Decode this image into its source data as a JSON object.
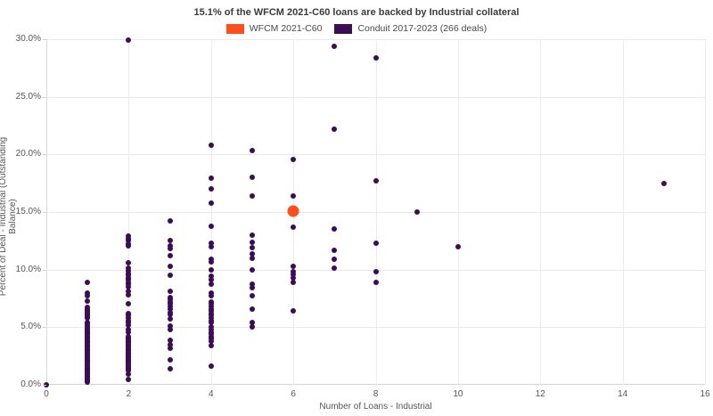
{
  "title": "15.1% of the WFCM 2021-C60 loans are backed by Industrial collateral",
  "chart_data": {
    "type": "scatter",
    "title": "15.1% of the WFCM 2021-C60 loans are backed by Industrial collateral",
    "xlabel": "Number of Loans - Industrial",
    "ylabel": "Percent of Deal - Industrial (Outstanding Balance)",
    "xlim": [
      0,
      16
    ],
    "ylim": [
      0,
      30
    ],
    "xticks": [
      0,
      2,
      4,
      6,
      8,
      10,
      12,
      14,
      16
    ],
    "yticks": [
      0,
      5,
      10,
      15,
      20,
      25,
      30
    ],
    "ytick_labels": [
      "0.0%",
      "5.0%",
      "10.0%",
      "15.0%",
      "20.0%",
      "25.0%",
      "30.0%"
    ],
    "grid": true,
    "legend_position": "top-center",
    "series": [
      {
        "name": "Conduit 2017-2023 (266 deals)",
        "color": "#3c0d56",
        "marker_size": 6,
        "points": [
          [
            0,
            0.0
          ],
          [
            1,
            8.9
          ],
          [
            1,
            8.0
          ],
          [
            1,
            7.7
          ],
          [
            1,
            7.3
          ],
          [
            1,
            6.7
          ],
          [
            1,
            6.6
          ],
          [
            1,
            6.5
          ],
          [
            1,
            6.4
          ],
          [
            1,
            6.3
          ],
          [
            1,
            6.2
          ],
          [
            1,
            6.1
          ],
          [
            1,
            6.0
          ],
          [
            1,
            5.9
          ],
          [
            1,
            5.8
          ],
          [
            1,
            5.4
          ],
          [
            1,
            5.3
          ],
          [
            1,
            5.2
          ],
          [
            1,
            5.0
          ],
          [
            1,
            4.9
          ],
          [
            1,
            4.8
          ],
          [
            1,
            4.7
          ],
          [
            1,
            4.6
          ],
          [
            1,
            4.5
          ],
          [
            1,
            4.4
          ],
          [
            1,
            4.3
          ],
          [
            1,
            4.2
          ],
          [
            1,
            4.1
          ],
          [
            1,
            4.0
          ],
          [
            1,
            3.9
          ],
          [
            1,
            3.8
          ],
          [
            1,
            3.7
          ],
          [
            1,
            3.6
          ],
          [
            1,
            3.5
          ],
          [
            1,
            3.4
          ],
          [
            1,
            3.3
          ],
          [
            1,
            3.2
          ],
          [
            1,
            3.1
          ],
          [
            1,
            3.0
          ],
          [
            1,
            2.9
          ],
          [
            1,
            2.8
          ],
          [
            1,
            2.7
          ],
          [
            1,
            2.6
          ],
          [
            1,
            2.5
          ],
          [
            1,
            2.4
          ],
          [
            1,
            2.3
          ],
          [
            1,
            2.2
          ],
          [
            1,
            2.1
          ],
          [
            1,
            2.0
          ],
          [
            1,
            1.9
          ],
          [
            1,
            1.8
          ],
          [
            1,
            1.7
          ],
          [
            1,
            1.6
          ],
          [
            1,
            1.5
          ],
          [
            1,
            1.4
          ],
          [
            1,
            1.3
          ],
          [
            1,
            1.2
          ],
          [
            1,
            1.1
          ],
          [
            1,
            1.0
          ],
          [
            1,
            0.9
          ],
          [
            1,
            0.8
          ],
          [
            1,
            0.7
          ],
          [
            1,
            0.6
          ],
          [
            1,
            0.5
          ],
          [
            1,
            0.4
          ],
          [
            1,
            0.3
          ],
          [
            1,
            0.2
          ],
          [
            2,
            29.9
          ],
          [
            2,
            12.9
          ],
          [
            2,
            12.7
          ],
          [
            2,
            12.5
          ],
          [
            2,
            12.2
          ],
          [
            2,
            12.1
          ],
          [
            2,
            10.6
          ],
          [
            2,
            10.1
          ],
          [
            2,
            9.9
          ],
          [
            2,
            9.7
          ],
          [
            2,
            9.5
          ],
          [
            2,
            9.3
          ],
          [
            2,
            9.1
          ],
          [
            2,
            8.9
          ],
          [
            2,
            8.7
          ],
          [
            2,
            8.5
          ],
          [
            2,
            8.1
          ],
          [
            2,
            7.8
          ],
          [
            2,
            7.0
          ],
          [
            2,
            6.2
          ],
          [
            2,
            6.0
          ],
          [
            2,
            5.8
          ],
          [
            2,
            5.6
          ],
          [
            2,
            5.4
          ],
          [
            2,
            5.2
          ],
          [
            2,
            4.8
          ],
          [
            2,
            4.6
          ],
          [
            2,
            4.2
          ],
          [
            2,
            4.1
          ],
          [
            2,
            4.0
          ],
          [
            2,
            3.9
          ],
          [
            2,
            3.8
          ],
          [
            2,
            3.7
          ],
          [
            2,
            3.6
          ],
          [
            2,
            3.5
          ],
          [
            2,
            3.4
          ],
          [
            2,
            3.3
          ],
          [
            2,
            3.2
          ],
          [
            2,
            3.1
          ],
          [
            2,
            3.0
          ],
          [
            2,
            2.9
          ],
          [
            2,
            2.8
          ],
          [
            2,
            2.7
          ],
          [
            2,
            2.6
          ],
          [
            2,
            2.5
          ],
          [
            2,
            2.4
          ],
          [
            2,
            2.3
          ],
          [
            2,
            2.2
          ],
          [
            2,
            2.1
          ],
          [
            2,
            2.0
          ],
          [
            2,
            1.9
          ],
          [
            2,
            1.8
          ],
          [
            2,
            1.7
          ],
          [
            2,
            1.6
          ],
          [
            2,
            1.5
          ],
          [
            2,
            1.4
          ],
          [
            2,
            1.3
          ],
          [
            2,
            1.2
          ],
          [
            2,
            0.9
          ],
          [
            2,
            0.5
          ],
          [
            3,
            14.2
          ],
          [
            3,
            12.5
          ],
          [
            3,
            12.1
          ],
          [
            3,
            11.8
          ],
          [
            3,
            11.2
          ],
          [
            3,
            10.3
          ],
          [
            3,
            9.5
          ],
          [
            3,
            8.1
          ],
          [
            3,
            7.6
          ],
          [
            3,
            7.4
          ],
          [
            3,
            7.2
          ],
          [
            3,
            7.0
          ],
          [
            3,
            6.8
          ],
          [
            3,
            6.6
          ],
          [
            3,
            6.3
          ],
          [
            3,
            6.1
          ],
          [
            3,
            5.7
          ],
          [
            3,
            5.1
          ],
          [
            3,
            4.8
          ],
          [
            3,
            3.9
          ],
          [
            3,
            3.5
          ],
          [
            3,
            3.2
          ],
          [
            3,
            2.2
          ],
          [
            3,
            1.4
          ],
          [
            4,
            20.8
          ],
          [
            4,
            17.9
          ],
          [
            4,
            17.0
          ],
          [
            4,
            15.8
          ],
          [
            4,
            13.8
          ],
          [
            4,
            12.3
          ],
          [
            4,
            12.0
          ],
          [
            4,
            10.9
          ],
          [
            4,
            10.7
          ],
          [
            4,
            10.0
          ],
          [
            4,
            9.4
          ],
          [
            4,
            9.1
          ],
          [
            4,
            8.7
          ],
          [
            4,
            8.0
          ],
          [
            4,
            7.7
          ],
          [
            4,
            7.2
          ],
          [
            4,
            7.0
          ],
          [
            4,
            6.8
          ],
          [
            4,
            6.6
          ],
          [
            4,
            6.4
          ],
          [
            4,
            6.2
          ],
          [
            4,
            6.0
          ],
          [
            4,
            5.8
          ],
          [
            4,
            5.6
          ],
          [
            4,
            5.4
          ],
          [
            4,
            5.0
          ],
          [
            4,
            4.8
          ],
          [
            4,
            4.6
          ],
          [
            4,
            4.4
          ],
          [
            4,
            4.2
          ],
          [
            4,
            4.0
          ],
          [
            4,
            3.8
          ],
          [
            4,
            3.4
          ],
          [
            4,
            1.6
          ],
          [
            5,
            20.3
          ],
          [
            5,
            18.0
          ],
          [
            5,
            16.4
          ],
          [
            5,
            13.0
          ],
          [
            5,
            12.4
          ],
          [
            5,
            11.9
          ],
          [
            5,
            11.4
          ],
          [
            5,
            11.0
          ],
          [
            5,
            10.0
          ],
          [
            5,
            8.7
          ],
          [
            5,
            8.4
          ],
          [
            5,
            7.7
          ],
          [
            5,
            6.6
          ],
          [
            5,
            5.4
          ],
          [
            5,
            5.0
          ],
          [
            6,
            19.6
          ],
          [
            6,
            16.4
          ],
          [
            6,
            13.7
          ],
          [
            6,
            10.3
          ],
          [
            6,
            9.8
          ],
          [
            6,
            9.6
          ],
          [
            6,
            9.3
          ],
          [
            6,
            8.9
          ],
          [
            6,
            6.4
          ],
          [
            7,
            29.4
          ],
          [
            7,
            22.2
          ],
          [
            7,
            13.5
          ],
          [
            7,
            11.7
          ],
          [
            7,
            10.9
          ],
          [
            7,
            10.1
          ],
          [
            8,
            28.4
          ],
          [
            8,
            17.7
          ],
          [
            8,
            12.3
          ],
          [
            8,
            9.8
          ],
          [
            8,
            8.9
          ],
          [
            9,
            15.0
          ],
          [
            10,
            12.0
          ],
          [
            15,
            17.5
          ]
        ]
      },
      {
        "name": "WFCM 2021-C60",
        "color": "#ff4e1d",
        "marker_size": 13,
        "points": [
          [
            6,
            15.1
          ]
        ]
      }
    ]
  },
  "legend": [
    {
      "label": "WFCM 2021-C60",
      "color": "#ff4e1d"
    },
    {
      "label": "Conduit 2017-2023 (266 deals)",
      "color": "#3c0d56"
    }
  ]
}
